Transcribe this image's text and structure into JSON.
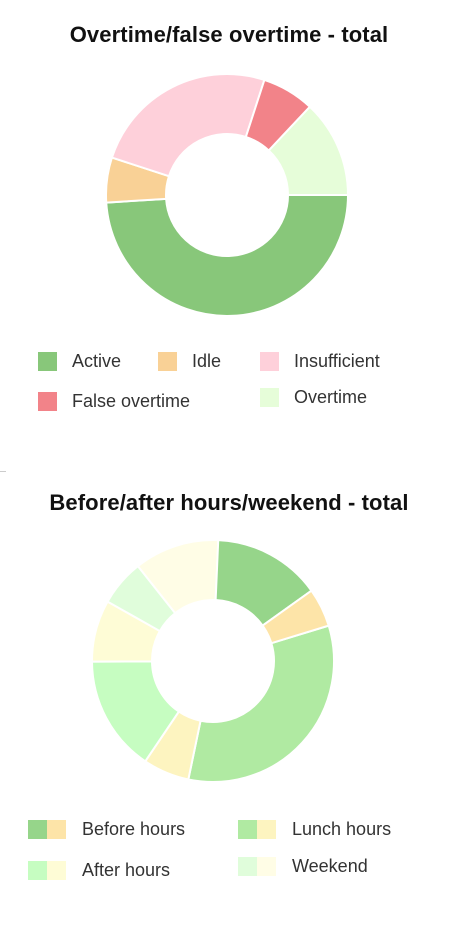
{
  "chart_data": [
    {
      "type": "pie",
      "title": "Overtime/false overtime - total",
      "donut": true,
      "start_angle_deg": 0,
      "legend_position": "bottom",
      "slices": [
        {
          "label": "Active",
          "value": 49,
          "color": "#88c77a"
        },
        {
          "label": "Idle",
          "value": 6,
          "color": "#f9d196"
        },
        {
          "label": "Insufficient",
          "value": 25,
          "color": "#fed0da"
        },
        {
          "label": "False overtime",
          "value": 7,
          "color": "#f28389"
        },
        {
          "label": "Overtime",
          "value": 13,
          "color": "#e6fdd9"
        }
      ],
      "legend": [
        {
          "label": "Active",
          "color": "#88c77a"
        },
        {
          "label": "Idle",
          "color": "#f9d196"
        },
        {
          "label": "Insufficient",
          "color": "#fed0da"
        },
        {
          "label": "False overtime",
          "color": "#f28389"
        },
        {
          "label": "Overtime",
          "color": "#e6fdd9"
        }
      ]
    },
    {
      "type": "pie",
      "title": "Before/after hours/weekend - total",
      "donut": true,
      "start_angle_deg": -17,
      "legend_position": "bottom",
      "slices": [
        {
          "value": 32,
          "color": "#b0eaa2"
        },
        {
          "value": 6,
          "color": "#fdf4c0"
        },
        {
          "value": 15,
          "color": "#c6fdc1"
        },
        {
          "value": 8,
          "color": "#fefcd6"
        },
        {
          "value": 6,
          "color": "#e0fddb"
        },
        {
          "value": 11,
          "color": "#fffde6"
        },
        {
          "value": 14,
          "color": "#96d58a"
        },
        {
          "value": 5,
          "color": "#fde4a8"
        }
      ],
      "legend": [
        {
          "label": "Before hours",
          "colors": [
            "#96d58a",
            "#fde4a8"
          ]
        },
        {
          "label": "Lunch hours",
          "colors": [
            "#b0eaa2",
            "#fdf4c0"
          ]
        },
        {
          "label": "After hours",
          "colors": [
            "#c6fdc1",
            "#fefcd6"
          ]
        },
        {
          "label": "Weekend",
          "colors": [
            "#e0fddb",
            "#fffde6"
          ]
        }
      ]
    }
  ]
}
